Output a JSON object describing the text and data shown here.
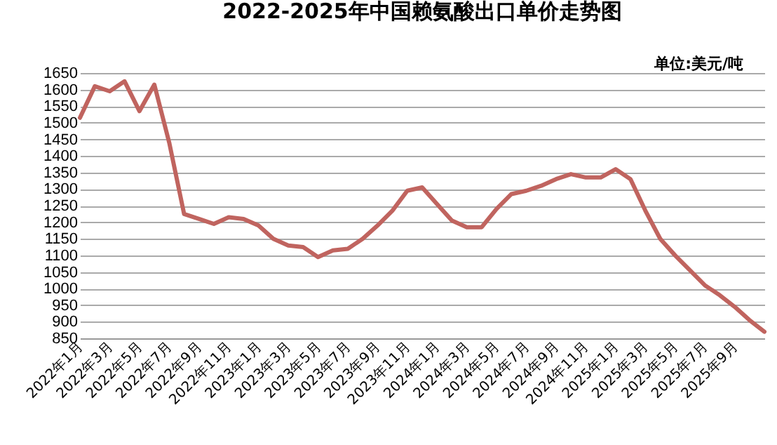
{
  "chart_data": {
    "type": "line",
    "title": "2022-2025年中国赖氨酸出口单价走势图",
    "annotations": [
      "单位:美元/吨"
    ],
    "categories": [
      "2022年1月",
      null,
      "2022年3月",
      null,
      "2022年5月",
      null,
      "2022年7月",
      null,
      "2022年9月",
      null,
      "2022年11月",
      null,
      "2023年1月",
      null,
      "2023年3月",
      null,
      "2023年5月",
      null,
      "2023年7月",
      null,
      "2023年9月",
      null,
      "2023年11月",
      null,
      "2024年1月",
      null,
      "2024年3月",
      null,
      "2024年5月",
      null,
      "2024年7月",
      null,
      "2024年9月",
      null,
      "2024年11月",
      null,
      "2025年1月",
      null,
      "2025年3月",
      null,
      "2025年5月",
      null,
      "2025年7月",
      null,
      "2025年9月",
      null,
      null
    ],
    "series": [
      {
        "color": "#c0645f",
        "values": [
          1515,
          1610,
          1595,
          1625,
          1535,
          1615,
          1440,
          1225,
          1210,
          1195,
          1215,
          1210,
          1190,
          1150,
          1130,
          1125,
          1095,
          1115,
          1120,
          1150,
          1190,
          1235,
          1295,
          1305,
          1255,
          1205,
          1185,
          1185,
          1240,
          1285,
          1295,
          1310,
          1330,
          1345,
          1335,
          1335,
          1360,
          1330,
          1235,
          1150,
          1100,
          1055,
          1010,
          980,
          945,
          905,
          870
        ]
      }
    ],
    "ylim": [
      850,
      1650
    ],
    "yticks": [
      850,
      900,
      950,
      1000,
      1050,
      1100,
      1150,
      1200,
      1250,
      1300,
      1350,
      1400,
      1450,
      1500,
      1550,
      1600,
      1650
    ],
    "grid": "y",
    "marker": "none",
    "line_style": "solid"
  }
}
